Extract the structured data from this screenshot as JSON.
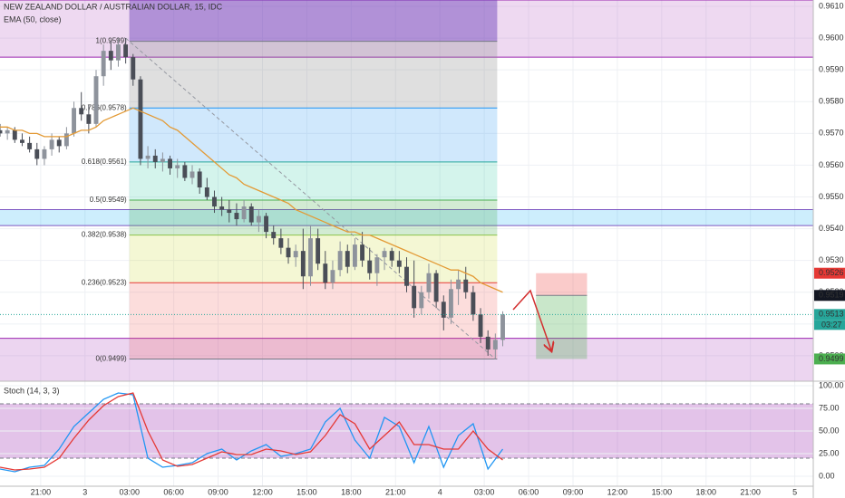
{
  "chart_data": [
    {
      "type": "candlestick",
      "title": "NEW ZEALAND DOLLAR / AUSTRALIAN DOLLAR, 15, IDC",
      "x": [
        0,
        2,
        4,
        6,
        8,
        10,
        12,
        14,
        16,
        18,
        20,
        22,
        24,
        26,
        28,
        30,
        32,
        34,
        36,
        38,
        40,
        42,
        44,
        46,
        48,
        50,
        52,
        54,
        56,
        58,
        60,
        62,
        64,
        66,
        68,
        70,
        72,
        74,
        76,
        78,
        80,
        82,
        84,
        86,
        88,
        90,
        92,
        94,
        96,
        98,
        100,
        102,
        104,
        106,
        108,
        110,
        112,
        114,
        116,
        118,
        120,
        122,
        124,
        126,
        128,
        130,
        132,
        134,
        136
      ],
      "candles": [
        [
          0.9571,
          0.9573,
          0.9569,
          0.957
        ],
        [
          0.957,
          0.9572,
          0.9568,
          0.9571
        ],
        [
          0.9571,
          0.9572,
          0.9567,
          0.9568
        ],
        [
          0.9568,
          0.957,
          0.9566,
          0.9567
        ],
        [
          0.9567,
          0.9569,
          0.9564,
          0.9565
        ],
        [
          0.9565,
          0.9567,
          0.956,
          0.9562
        ],
        [
          0.9562,
          0.9566,
          0.956,
          0.9565
        ],
        [
          0.9565,
          0.957,
          0.9563,
          0.9568
        ],
        [
          0.9568,
          0.9569,
          0.9564,
          0.9566
        ],
        [
          0.9566,
          0.9572,
          0.9565,
          0.957
        ],
        [
          0.957,
          0.958,
          0.9569,
          0.9578
        ],
        [
          0.9578,
          0.9583,
          0.9574,
          0.9576
        ],
        [
          0.9576,
          0.9579,
          0.957,
          0.9573
        ],
        [
          0.9573,
          0.959,
          0.9572,
          0.9588
        ],
        [
          0.9588,
          0.9598,
          0.9585,
          0.9596
        ],
        [
          0.9596,
          0.9599,
          0.959,
          0.9593
        ],
        [
          0.9593,
          0.96,
          0.9591,
          0.9598
        ],
        [
          0.9598,
          0.96,
          0.9592,
          0.9594
        ],
        [
          0.9594,
          0.9595,
          0.9585,
          0.9587
        ],
        [
          0.9587,
          0.9588,
          0.956,
          0.9562
        ],
        [
          0.9562,
          0.9566,
          0.9559,
          0.9563
        ],
        [
          0.9563,
          0.9565,
          0.9559,
          0.9561
        ],
        [
          0.9561,
          0.9564,
          0.9558,
          0.9562
        ],
        [
          0.9562,
          0.9563,
          0.9557,
          0.9559
        ],
        [
          0.9559,
          0.9562,
          0.9556,
          0.956
        ],
        [
          0.956,
          0.9561,
          0.9555,
          0.9556
        ],
        [
          0.9556,
          0.956,
          0.9554,
          0.9558
        ],
        [
          0.9558,
          0.9559,
          0.9551,
          0.9553
        ],
        [
          0.9553,
          0.9556,
          0.9549,
          0.955
        ],
        [
          0.955,
          0.9552,
          0.9545,
          0.9547
        ],
        [
          0.9547,
          0.955,
          0.9544,
          0.9546
        ],
        [
          0.9546,
          0.9549,
          0.9542,
          0.9545
        ],
        [
          0.9545,
          0.9548,
          0.9541,
          0.9543
        ],
        [
          0.9543,
          0.9549,
          0.9542,
          0.9547
        ],
        [
          0.9547,
          0.9548,
          0.9541,
          0.9542
        ],
        [
          0.9542,
          0.9546,
          0.9539,
          0.9544
        ],
        [
          0.9544,
          0.9545,
          0.9537,
          0.9539
        ],
        [
          0.9539,
          0.9541,
          0.9535,
          0.9537
        ],
        [
          0.9537,
          0.954,
          0.9532,
          0.9534
        ],
        [
          0.9534,
          0.9537,
          0.9529,
          0.9531
        ],
        [
          0.9531,
          0.9535,
          0.9528,
          0.9533
        ],
        [
          0.9533,
          0.954,
          0.9521,
          0.9525
        ],
        [
          0.9525,
          0.9541,
          0.9522,
          0.9537
        ],
        [
          0.9537,
          0.954,
          0.9527,
          0.9529
        ],
        [
          0.9529,
          0.9533,
          0.9521,
          0.9523
        ],
        [
          0.9523,
          0.953,
          0.9521,
          0.9527
        ],
        [
          0.9527,
          0.9536,
          0.9525,
          0.9533
        ],
        [
          0.9533,
          0.9535,
          0.9526,
          0.9528
        ],
        [
          0.9528,
          0.9537,
          0.9527,
          0.9535
        ],
        [
          0.9535,
          0.9539,
          0.9528,
          0.953
        ],
        [
          0.953,
          0.9534,
          0.9524,
          0.9526
        ],
        [
          0.9526,
          0.9532,
          0.9522,
          0.9531
        ],
        [
          0.9531,
          0.9534,
          0.9527,
          0.9533
        ],
        [
          0.9533,
          0.9534,
          0.9528,
          0.953
        ],
        [
          0.953,
          0.9533,
          0.9526,
          0.9528
        ],
        [
          0.9528,
          0.9531,
          0.952,
          0.9522
        ],
        [
          0.9522,
          0.953,
          0.9512,
          0.9515
        ],
        [
          0.9515,
          0.9522,
          0.9513,
          0.952
        ],
        [
          0.952,
          0.9529,
          0.9518,
          0.9526
        ],
        [
          0.9526,
          0.9527,
          0.9515,
          0.9517
        ],
        [
          0.9517,
          0.9519,
          0.9508,
          0.9512
        ],
        [
          0.9512,
          0.9524,
          0.951,
          0.9521
        ],
        [
          0.9521,
          0.9527,
          0.9516,
          0.9524
        ],
        [
          0.9524,
          0.9528,
          0.9518,
          0.952
        ],
        [
          0.952,
          0.9522,
          0.9511,
          0.9513
        ],
        [
          0.9513,
          0.9515,
          0.9504,
          0.9506
        ],
        [
          0.9506,
          0.9508,
          0.95,
          0.9502
        ],
        [
          0.9502,
          0.9507,
          0.9499,
          0.9505
        ],
        [
          0.9505,
          0.9514,
          0.9503,
          0.9513
        ]
      ],
      "up_color": "#8e939c",
      "down_color": "#4a4e57",
      "series": [
        {
          "name": "EMA (50, close)",
          "color": "#e39a35",
          "values": [
            0.9572,
            0.9572,
            0.9571,
            0.9571,
            0.957,
            0.957,
            0.9569,
            0.9569,
            0.9569,
            0.9569,
            0.957,
            0.9571,
            0.9571,
            0.9572,
            0.9574,
            0.9575,
            0.9576,
            0.9577,
            0.9578,
            0.9577,
            0.9576,
            0.9575,
            0.9574,
            0.9572,
            0.9571,
            0.9569,
            0.9567,
            0.9565,
            0.9563,
            0.9561,
            0.9559,
            0.9557,
            0.9556,
            0.9554,
            0.9553,
            0.9552,
            0.9551,
            0.955,
            0.9549,
            0.9548,
            0.9546,
            0.9545,
            0.9544,
            0.9543,
            0.9542,
            0.9541,
            0.954,
            0.9539,
            0.9539,
            0.9538,
            0.9538,
            0.9537,
            0.9536,
            0.9535,
            0.9534,
            0.9533,
            0.9532,
            0.9531,
            0.953,
            0.9529,
            0.9528,
            0.9527,
            0.9527,
            0.9526,
            0.9525,
            0.9523,
            0.9522,
            0.9521,
            0.952
          ]
        }
      ],
      "xlim": [
        0,
        220
      ],
      "xticks": [
        {
          "value": 11,
          "label": "21:00"
        },
        {
          "value": 23,
          "label": "3"
        },
        {
          "value": 35,
          "label": "03:00"
        },
        {
          "value": 47,
          "label": "06:00"
        },
        {
          "value": 59,
          "label": "09:00"
        },
        {
          "value": 71,
          "label": "12:00"
        },
        {
          "value": 83,
          "label": "15:00"
        },
        {
          "value": 95,
          "label": "18:00"
        },
        {
          "value": 107,
          "label": "21:00"
        },
        {
          "value": 119,
          "label": "4"
        },
        {
          "value": 131,
          "label": "03:00"
        },
        {
          "value": 143,
          "label": "06:00"
        },
        {
          "value": 155,
          "label": "09:00"
        },
        {
          "value": 167,
          "label": "12:00"
        },
        {
          "value": 179,
          "label": "15:00"
        },
        {
          "value": 191,
          "label": "18:00"
        },
        {
          "value": 203,
          "label": "21:00"
        },
        {
          "value": 215,
          "label": "5"
        }
      ],
      "ylim": [
        0.9492,
        0.9612
      ],
      "yticks": [
        {
          "value": 0.95,
          "label": "0.9500"
        },
        {
          "value": 0.951,
          "label": "0.9510"
        },
        {
          "value": 0.952,
          "label": "0.9520"
        },
        {
          "value": 0.953,
          "label": "0.9530"
        },
        {
          "value": 0.954,
          "label": "0.9540"
        },
        {
          "value": 0.955,
          "label": "0.9550"
        },
        {
          "value": 0.956,
          "label": "0.9560"
        },
        {
          "value": 0.957,
          "label": "0.9570"
        },
        {
          "value": 0.958,
          "label": "0.9580"
        },
        {
          "value": 0.959,
          "label": "0.9590"
        },
        {
          "value": 0.96,
          "label": "0.9600"
        },
        {
          "value": 0.961,
          "label": "0.9610"
        }
      ],
      "grid": true,
      "zones": [
        {
          "range": [
            0.9594,
            0.9612
          ],
          "color": "rgba(186,104,200,0.25)",
          "line": "#9c27b0"
        },
        {
          "range": [
            0.9541,
            0.9546
          ],
          "color": "rgba(3,169,244,0.2)",
          "line": "#7e57c2"
        },
        {
          "range": [
            0.9492,
            0.95055
          ],
          "color": "rgba(186,104,200,0.28)",
          "line": "#9c27b0"
        }
      ],
      "fib": {
        "x": [
          35,
          134.5
        ],
        "levels": [
          {
            "value": 0.9599,
            "label": "1(0.9599)"
          },
          {
            "value": 0.9578,
            "label": "0.786(0.9578)"
          },
          {
            "value": 0.9561,
            "label": "0.618(0.9561)"
          },
          {
            "value": 0.9549,
            "label": "0.5(0.9549)"
          },
          {
            "value": 0.9538,
            "label": "0.382(0.9538)"
          },
          {
            "value": 0.9523,
            "label": "0.236(0.9523)"
          },
          {
            "value": 0.9499,
            "label": "0(0.9499)"
          }
        ],
        "band_colors": [
          "rgba(103,58,183,0.45)",
          "rgba(140,140,140,0.28)",
          "rgba(66,165,245,0.25)",
          "rgba(38,198,160,0.2)",
          "rgba(76,175,80,0.25)",
          "rgba(205,220,57,0.22)",
          "rgba(239,83,80,0.2)"
        ],
        "line_colors": [
          "#787b86",
          "#2196f3",
          "#26a69a",
          "#4caf50",
          "#8bc34a",
          "#e53935",
          "#787b86"
        ]
      },
      "trend": {
        "x": [
          34,
          134
        ],
        "y": [
          0.96,
          0.9499
        ]
      },
      "position": {
        "x": [
          145,
          158.8
        ],
        "entry": 0.9519,
        "stop": 0.9526,
        "target": 0.9499,
        "stop_color": "rgba(239,83,80,0.3)",
        "target_color": "rgba(76,175,80,0.3)"
      },
      "price_tags": [
        {
          "value": 0.9526,
          "label": "0.9526",
          "color": "#e53935"
        },
        {
          "value": 0.9519,
          "label": "0.9519",
          "color": "#131722"
        },
        {
          "value": 0.9513,
          "label": "0.9513",
          "color": "#26a69a",
          "dotted": true
        },
        {
          "value": 0.9499,
          "label": "0.9499",
          "color": "#4caf50"
        }
      ],
      "countdown": "03:27"
    },
    {
      "type": "line",
      "title": "Stoch (14, 3, 3)",
      "x": [
        0,
        4,
        8,
        12,
        16,
        20,
        24,
        28,
        32,
        36,
        40,
        44,
        48,
        52,
        56,
        60,
        64,
        68,
        72,
        76,
        80,
        84,
        88,
        92,
        96,
        100,
        104,
        108,
        112,
        116,
        120,
        124,
        128,
        132,
        136
      ],
      "series": [
        {
          "color": "#2196f3",
          "values": [
            8,
            5,
            10,
            12,
            30,
            55,
            70,
            85,
            92,
            90,
            20,
            10,
            12,
            15,
            25,
            30,
            18,
            28,
            35,
            22,
            25,
            30,
            60,
            75,
            40,
            20,
            65,
            55,
            15,
            55,
            10,
            45,
            58,
            8,
            30
          ]
        },
        {
          "color": "#e53935",
          "values": [
            10,
            7,
            8,
            10,
            20,
            42,
            62,
            78,
            88,
            92,
            50,
            18,
            11,
            13,
            20,
            27,
            24,
            24,
            30,
            28,
            24,
            27,
            45,
            68,
            58,
            30,
            45,
            60,
            35,
            35,
            30,
            30,
            50,
            30,
            18
          ]
        }
      ],
      "ylim": [
        -11,
        105
      ],
      "yticks": [
        {
          "value": 0,
          "label": "0.00"
        },
        {
          "value": 25,
          "label": "25.00"
        },
        {
          "value": 50,
          "label": "50.00"
        },
        {
          "value": 75,
          "label": "75.00"
        },
        {
          "value": 100,
          "label": "100.00"
        }
      ],
      "band": [
        20,
        80
      ],
      "band_color": "rgba(156,39,176,0.28)"
    }
  ]
}
